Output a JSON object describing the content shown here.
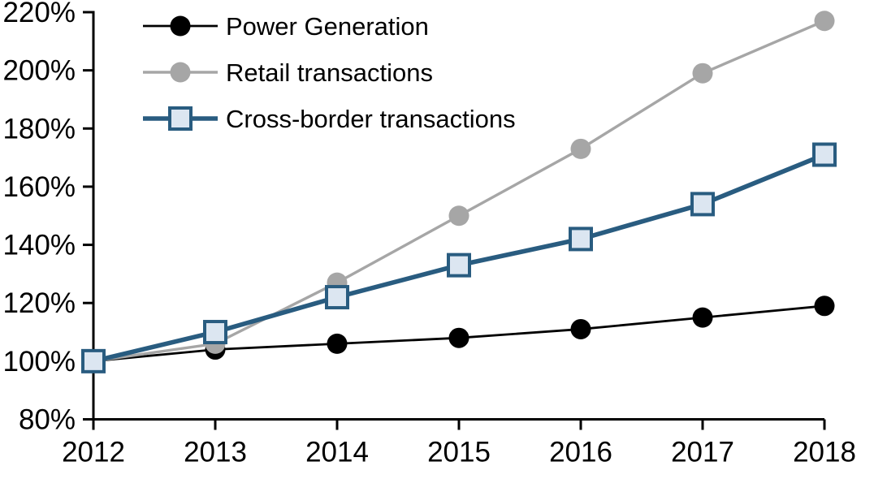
{
  "chart_data": {
    "type": "line",
    "title": "",
    "xlabel": "",
    "ylabel": "",
    "x": [
      2012,
      2013,
      2014,
      2015,
      2016,
      2017,
      2018
    ],
    "series": [
      {
        "name": "Power Generation",
        "values": [
          100,
          104,
          106,
          108,
          111,
          115,
          119
        ],
        "color": "#000000",
        "marker": "circle",
        "marker_fill": "#000000",
        "line_width": 2.8
      },
      {
        "name": "Retail transactions",
        "values": [
          100,
          106,
          127,
          150,
          173,
          199,
          217
        ],
        "color": "#a6a6a6",
        "marker": "circle",
        "marker_fill": "#a6a6a6",
        "line_width": 3.4
      },
      {
        "name": "Cross-border transactions",
        "values": [
          100,
          110,
          122,
          133,
          142,
          154,
          171
        ],
        "color": "#295c80",
        "marker": "square",
        "marker_fill": "#dce6f1",
        "line_width": 5.6
      }
    ],
    "ylim": [
      80,
      220
    ],
    "y_tick_step": 20,
    "y_tick_suffix": "%",
    "x_tick_labels": [
      "2012",
      "2013",
      "2014",
      "2015",
      "2016",
      "2017",
      "2018"
    ],
    "y_tick_labels": [
      "80%",
      "100%",
      "120%",
      "140%",
      "160%",
      "180%",
      "200%",
      "220%"
    ],
    "grid": false,
    "legend_position": "top-left",
    "axis_color": "#000000",
    "background_color": "#ffffff"
  }
}
